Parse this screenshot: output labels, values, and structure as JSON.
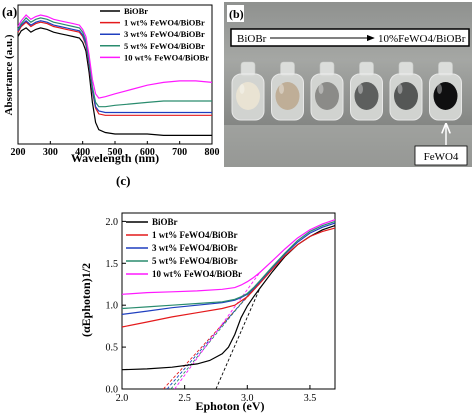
{
  "chart_data": [
    {
      "panel": "(a)",
      "type": "line",
      "xlabel": "Wavelength (nm)",
      "ylabel": "Absortance (a.u.)",
      "xlim": [
        200,
        800
      ],
      "x_ticks": [
        "200",
        "300",
        "400",
        "500",
        "600",
        "700",
        "800"
      ],
      "grid": false,
      "legend": "top-right",
      "colors": [
        "#000000",
        "#e41a1c",
        "#1f3fbf",
        "#2a8c6e",
        "#ff19ff"
      ],
      "series": [
        {
          "name": "BiOBr",
          "x": [
            200,
            210,
            225,
            240,
            255,
            270,
            290,
            310,
            330,
            350,
            370,
            390,
            400,
            410,
            420,
            430,
            440,
            450,
            470,
            500,
            550,
            600,
            650,
            700,
            750,
            800
          ],
          "y": [
            0.8,
            0.84,
            0.86,
            0.83,
            0.85,
            0.86,
            0.85,
            0.83,
            0.82,
            0.81,
            0.8,
            0.79,
            0.76,
            0.7,
            0.55,
            0.34,
            0.2,
            0.15,
            0.13,
            0.12,
            0.12,
            0.12,
            0.11,
            0.11,
            0.11,
            0.11
          ]
        },
        {
          "name": "1 wt%  FeWO4/BiOBr",
          "x": [
            200,
            210,
            225,
            240,
            255,
            270,
            290,
            310,
            330,
            350,
            370,
            390,
            400,
            410,
            420,
            430,
            440,
            450,
            470,
            500,
            550,
            600,
            650,
            700,
            750,
            800
          ],
          "y": [
            0.83,
            0.87,
            0.9,
            0.87,
            0.89,
            0.9,
            0.89,
            0.87,
            0.86,
            0.85,
            0.84,
            0.83,
            0.8,
            0.74,
            0.6,
            0.42,
            0.3,
            0.26,
            0.25,
            0.25,
            0.25,
            0.25,
            0.25,
            0.25,
            0.25,
            0.25
          ]
        },
        {
          "name": "3 wt%  FeWO4/BiOBr",
          "x": [
            200,
            210,
            225,
            240,
            255,
            270,
            290,
            310,
            330,
            350,
            370,
            390,
            400,
            410,
            420,
            430,
            440,
            450,
            470,
            500,
            550,
            600,
            650,
            700,
            750,
            800
          ],
          "y": [
            0.84,
            0.88,
            0.91,
            0.88,
            0.9,
            0.91,
            0.9,
            0.88,
            0.87,
            0.86,
            0.85,
            0.84,
            0.81,
            0.75,
            0.61,
            0.43,
            0.31,
            0.28,
            0.27,
            0.27,
            0.27,
            0.27,
            0.27,
            0.27,
            0.27,
            0.27
          ]
        },
        {
          "name": "5 wt%  FeWO4/BiOBr",
          "x": [
            200,
            210,
            225,
            240,
            255,
            270,
            290,
            310,
            330,
            350,
            370,
            390,
            400,
            410,
            420,
            430,
            440,
            450,
            470,
            500,
            550,
            600,
            650,
            700,
            750,
            800
          ],
          "y": [
            0.85,
            0.89,
            0.93,
            0.9,
            0.92,
            0.93,
            0.92,
            0.9,
            0.89,
            0.88,
            0.87,
            0.86,
            0.83,
            0.77,
            0.63,
            0.45,
            0.34,
            0.31,
            0.31,
            0.32,
            0.33,
            0.34,
            0.35,
            0.35,
            0.35,
            0.35
          ]
        },
        {
          "name": "10 wt%  FeWO4/BiOBr",
          "x": [
            200,
            210,
            225,
            240,
            255,
            270,
            290,
            310,
            330,
            350,
            370,
            390,
            400,
            410,
            420,
            430,
            440,
            450,
            470,
            500,
            550,
            600,
            650,
            700,
            750,
            800
          ],
          "y": [
            0.87,
            0.91,
            0.95,
            0.92,
            0.94,
            0.95,
            0.94,
            0.92,
            0.91,
            0.9,
            0.89,
            0.88,
            0.85,
            0.8,
            0.67,
            0.5,
            0.4,
            0.37,
            0.38,
            0.4,
            0.43,
            0.46,
            0.48,
            0.49,
            0.49,
            0.48
          ]
        }
      ]
    },
    {
      "panel": "(c)",
      "type": "line",
      "xlabel": "Ephoton (eV)",
      "ylabel": "(αEphoton)1/2",
      "xlim": [
        2.0,
        3.7
      ],
      "ylim": [
        0.0,
        2.1
      ],
      "x_ticks": [
        "2.0",
        "2.5",
        "3.0",
        "3.5"
      ],
      "y_ticks": [
        "0.0",
        "0.5",
        "1.0",
        "1.5",
        "2.0"
      ],
      "grid": false,
      "legend": "top-left",
      "colors": [
        "#000000",
        "#e41a1c",
        "#1f3fbf",
        "#2a8c6e",
        "#ff19ff"
      ],
      "series": [
        {
          "name": "BiOBr",
          "x": [
            2.0,
            2.2,
            2.4,
            2.6,
            2.7,
            2.8,
            2.85,
            2.9,
            2.95,
            3.0,
            3.05,
            3.1,
            3.2,
            3.3,
            3.4,
            3.5,
            3.6,
            3.7
          ],
          "y": [
            0.23,
            0.24,
            0.26,
            0.3,
            0.34,
            0.42,
            0.5,
            0.65,
            0.85,
            0.99,
            1.1,
            1.2,
            1.4,
            1.58,
            1.72,
            1.82,
            1.9,
            1.95
          ]
        },
        {
          "name": "1 wt%  FeWO4/BiOBr",
          "x": [
            2.0,
            2.2,
            2.4,
            2.6,
            2.8,
            2.9,
            2.95,
            3.0,
            3.05,
            3.1,
            3.2,
            3.3,
            3.4,
            3.5,
            3.6,
            3.7
          ],
          "y": [
            0.74,
            0.8,
            0.86,
            0.91,
            0.96,
            1.0,
            1.05,
            1.1,
            1.18,
            1.26,
            1.43,
            1.59,
            1.72,
            1.82,
            1.88,
            1.92
          ]
        },
        {
          "name": "3 wt%  FeWO4/BiOBr",
          "x": [
            2.0,
            2.2,
            2.4,
            2.6,
            2.8,
            2.9,
            2.95,
            3.0,
            3.05,
            3.1,
            3.2,
            3.3,
            3.4,
            3.5,
            3.6,
            3.7
          ],
          "y": [
            0.89,
            0.93,
            0.97,
            1.0,
            1.03,
            1.06,
            1.09,
            1.13,
            1.2,
            1.28,
            1.45,
            1.61,
            1.75,
            1.86,
            1.93,
            1.98
          ]
        },
        {
          "name": "5 wt%  FeWO4/BiOBr",
          "x": [
            2.0,
            2.2,
            2.4,
            2.6,
            2.8,
            2.9,
            2.95,
            3.0,
            3.05,
            3.1,
            3.2,
            3.3,
            3.4,
            3.5,
            3.6,
            3.7
          ],
          "y": [
            0.96,
            0.98,
            1.0,
            1.02,
            1.04,
            1.07,
            1.1,
            1.14,
            1.21,
            1.29,
            1.46,
            1.62,
            1.77,
            1.88,
            1.95,
            2.0
          ]
        },
        {
          "name": "10 wt%  FeWO4/BiOBr",
          "x": [
            2.0,
            2.2,
            2.4,
            2.6,
            2.8,
            2.9,
            2.95,
            3.0,
            3.05,
            3.1,
            3.2,
            3.3,
            3.4,
            3.5,
            3.6,
            3.7
          ],
          "y": [
            1.13,
            1.15,
            1.16,
            1.17,
            1.19,
            1.21,
            1.24,
            1.28,
            1.33,
            1.39,
            1.53,
            1.67,
            1.8,
            1.9,
            1.97,
            2.02
          ]
        }
      ],
      "tangents": [
        {
          "color": "#000000",
          "x": [
            2.75,
            3.1
          ],
          "y": [
            -0.05,
            1.2
          ]
        },
        {
          "color": "#e41a1c",
          "x": [
            2.33,
            3.1
          ],
          "y": [
            -0.05,
            1.26
          ]
        },
        {
          "color": "#1f3fbf",
          "x": [
            2.36,
            3.1
          ],
          "y": [
            -0.05,
            1.28
          ]
        },
        {
          "color": "#2a8c6e",
          "x": [
            2.39,
            3.1
          ],
          "y": [
            -0.05,
            1.29
          ]
        },
        {
          "color": "#ff19ff",
          "x": [
            2.42,
            3.1
          ],
          "y": [
            -0.05,
            1.39
          ]
        }
      ]
    }
  ],
  "photo": {
    "panel": "(b)",
    "scale_left": "BiOBr",
    "scale_right": "10%FeWO4/BiOBr",
    "callout": "FeWO4",
    "vial_colors": [
      "#e9e3d3",
      "#bfae97",
      "#8b8b88",
      "#5d5f5e",
      "#555756",
      "#0f0f10"
    ]
  }
}
